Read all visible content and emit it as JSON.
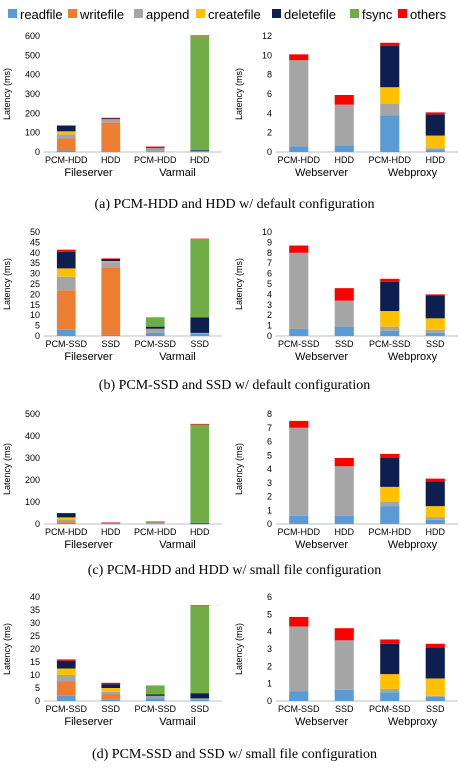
{
  "legend": {
    "items": [
      {
        "label": "readfile",
        "color": "#5b9bd5"
      },
      {
        "label": "writefile",
        "color": "#ed7d31"
      },
      {
        "label": "append",
        "color": "#a5a5a5"
      },
      {
        "label": "createfile",
        "color": "#ffc000"
      },
      {
        "label": "deletefile",
        "color": "#0d1f4f"
      },
      {
        "label": "fsync",
        "color": "#70ad47"
      },
      {
        "label": "others",
        "color": "#ff0000"
      }
    ]
  },
  "captions": {
    "a": "(a) PCM-HDD and HDD w/ default configuration",
    "b": "(b) PCM-SSD and SSD w/ default configuration",
    "c": "(c) PCM-HDD and HDD w/ small file configuration",
    "d": "(d) PCM-SSD and SSD w/ small file configuration"
  },
  "chart_data": [
    {
      "type": "bar",
      "stacked": true,
      "panel": "a-left",
      "ylabel": "Latency (ms)",
      "ylim": [
        0,
        600
      ],
      "yticks": [
        0,
        100,
        200,
        300,
        400,
        500,
        600
      ],
      "categories": [
        "PCM-HDD",
        "HDD",
        "PCM-HDD",
        "HDD"
      ],
      "groups": [
        {
          "label": "Fileserver",
          "categories": [
            0,
            1
          ]
        },
        {
          "label": "Varmail",
          "categories": [
            2,
            3
          ]
        }
      ],
      "series": [
        {
          "name": "readfile",
          "values": [
            8,
            2,
            2,
            2
          ]
        },
        {
          "name": "writefile",
          "values": [
            62,
            150,
            0,
            0
          ]
        },
        {
          "name": "append",
          "values": [
            22,
            18,
            18,
            2
          ]
        },
        {
          "name": "createfile",
          "values": [
            15,
            0,
            0,
            0
          ]
        },
        {
          "name": "deletefile",
          "values": [
            28,
            5,
            5,
            5
          ]
        },
        {
          "name": "fsync",
          "values": [
            0,
            0,
            2,
            590
          ]
        },
        {
          "name": "others",
          "values": [
            3,
            2,
            1,
            4
          ]
        }
      ]
    },
    {
      "type": "bar",
      "stacked": true,
      "panel": "a-right",
      "ylabel": "Latency (ms)",
      "ylim": [
        0,
        12
      ],
      "yticks": [
        0,
        2,
        4,
        6,
        8,
        10,
        12
      ],
      "categories": [
        "PCM-HDD",
        "HDD",
        "PCM-HDD",
        "HDD"
      ],
      "groups": [
        {
          "label": "Webserver",
          "categories": [
            0,
            1
          ]
        },
        {
          "label": "Webproxy",
          "categories": [
            2,
            3
          ]
        }
      ],
      "series": [
        {
          "name": "readfile",
          "values": [
            0.6,
            0.7,
            3.8,
            0.2
          ]
        },
        {
          "name": "writefile",
          "values": [
            0,
            0,
            0,
            0
          ]
        },
        {
          "name": "append",
          "values": [
            8.9,
            4.2,
            1.2,
            0.2
          ]
        },
        {
          "name": "createfile",
          "values": [
            0,
            0,
            1.7,
            1.3
          ]
        },
        {
          "name": "deletefile",
          "values": [
            0,
            0,
            4.3,
            2.2
          ]
        },
        {
          "name": "fsync",
          "values": [
            0,
            0,
            0,
            0
          ]
        },
        {
          "name": "others",
          "values": [
            0.6,
            1.0,
            0.3,
            0.2
          ]
        }
      ]
    },
    {
      "type": "bar",
      "stacked": true,
      "panel": "b-left",
      "ylabel": "Latency (ms)",
      "ylim": [
        0,
        50
      ],
      "yticks": [
        0,
        5,
        10,
        15,
        20,
        25,
        30,
        35,
        40,
        45,
        50
      ],
      "categories": [
        "PCM-SSD",
        "SSD",
        "PCM-SSD",
        "SSD"
      ],
      "groups": [
        {
          "label": "Fileserver",
          "categories": [
            0,
            1
          ]
        },
        {
          "label": "Varmail",
          "categories": [
            2,
            3
          ]
        }
      ],
      "series": [
        {
          "name": "readfile",
          "values": [
            3,
            0.5,
            1.5,
            1
          ]
        },
        {
          "name": "writefile",
          "values": [
            19,
            32.5,
            0,
            0
          ]
        },
        {
          "name": "append",
          "values": [
            6.5,
            2.5,
            2,
            0.5
          ]
        },
        {
          "name": "createfile",
          "values": [
            4,
            0.5,
            0,
            0
          ]
        },
        {
          "name": "deletefile",
          "values": [
            8,
            1,
            1,
            7.5
          ]
        },
        {
          "name": "fsync",
          "values": [
            0,
            0,
            4.5,
            37.5
          ]
        },
        {
          "name": "others",
          "values": [
            1,
            0.3,
            0,
            0.3
          ]
        }
      ]
    },
    {
      "type": "bar",
      "stacked": true,
      "panel": "b-right",
      "ylabel": "Latency (ms)",
      "ylim": [
        0,
        10
      ],
      "yticks": [
        0,
        1,
        2,
        3,
        4,
        5,
        6,
        7,
        8,
        9,
        10
      ],
      "categories": [
        "PCM-SSD",
        "SSD",
        "PCM-SSD",
        "SSD"
      ],
      "groups": [
        {
          "label": "Webserver",
          "categories": [
            0,
            1
          ]
        },
        {
          "label": "Webproxy",
          "categories": [
            2,
            3
          ]
        }
      ],
      "series": [
        {
          "name": "readfile",
          "values": [
            0.7,
            0.9,
            0.5,
            0.3
          ]
        },
        {
          "name": "writefile",
          "values": [
            0,
            0,
            0,
            0
          ]
        },
        {
          "name": "append",
          "values": [
            7.3,
            2.5,
            0.4,
            0.3
          ]
        },
        {
          "name": "createfile",
          "values": [
            0,
            0,
            1.5,
            1.1
          ]
        },
        {
          "name": "deletefile",
          "values": [
            0,
            0,
            2.8,
            2.2
          ]
        },
        {
          "name": "fsync",
          "values": [
            0,
            0,
            0,
            0
          ]
        },
        {
          "name": "others",
          "values": [
            0.7,
            1.2,
            0.3,
            0.1
          ]
        }
      ]
    },
    {
      "type": "bar",
      "stacked": true,
      "panel": "c-left",
      "ylabel": "Latency (ms)",
      "ylim": [
        0,
        500
      ],
      "yticks": [
        0,
        100,
        200,
        300,
        400,
        500
      ],
      "categories": [
        "PCM-HDD",
        "HDD",
        "PCM-HDD",
        "HDD"
      ],
      "groups": [
        {
          "label": "Fileserver",
          "categories": [
            0,
            1
          ]
        },
        {
          "label": "Varmail",
          "categories": [
            2,
            3
          ]
        }
      ],
      "series": [
        {
          "name": "readfile",
          "values": [
            5,
            1,
            1,
            1
          ]
        },
        {
          "name": "writefile",
          "values": [
            8,
            2,
            0,
            0
          ]
        },
        {
          "name": "append",
          "values": [
            7,
            1,
            5,
            1
          ]
        },
        {
          "name": "createfile",
          "values": [
            10,
            1,
            3,
            0
          ]
        },
        {
          "name": "deletefile",
          "values": [
            18,
            1,
            1,
            3
          ]
        },
        {
          "name": "fsync",
          "values": [
            0,
            0,
            0,
            447
          ]
        },
        {
          "name": "others",
          "values": [
            2,
            1,
            1,
            3
          ]
        }
      ]
    },
    {
      "type": "bar",
      "stacked": true,
      "panel": "c-right",
      "ylabel": "Latency (ms)",
      "ylim": [
        0,
        8
      ],
      "yticks": [
        0,
        1,
        2,
        3,
        4,
        5,
        6,
        7,
        8
      ],
      "categories": [
        "PCM-HDD",
        "HDD",
        "PCM-HDD",
        "HDD"
      ],
      "groups": [
        {
          "label": "Webserver",
          "categories": [
            0,
            1
          ]
        },
        {
          "label": "Webproxy",
          "categories": [
            2,
            3
          ]
        }
      ],
      "series": [
        {
          "name": "readfile",
          "values": [
            0.6,
            0.6,
            1.3,
            0.3
          ]
        },
        {
          "name": "writefile",
          "values": [
            0,
            0,
            0,
            0
          ]
        },
        {
          "name": "append",
          "values": [
            6.4,
            3.6,
            0.3,
            0.2
          ]
        },
        {
          "name": "createfile",
          "values": [
            0,
            0,
            1.1,
            0.8
          ]
        },
        {
          "name": "deletefile",
          "values": [
            0,
            0,
            2.1,
            1.8
          ]
        },
        {
          "name": "fsync",
          "values": [
            0,
            0,
            0,
            0
          ]
        },
        {
          "name": "others",
          "values": [
            0.5,
            0.6,
            0.3,
            0.2
          ]
        }
      ]
    },
    {
      "type": "bar",
      "stacked": true,
      "panel": "d-left",
      "ylabel": "Latency (ms)",
      "ylim": [
        0,
        40
      ],
      "yticks": [
        0,
        5,
        10,
        15,
        20,
        25,
        30,
        35,
        40
      ],
      "categories": [
        "PCM-SSD",
        "SSD",
        "PCM-SSD",
        "SSD"
      ],
      "groups": [
        {
          "label": "Fileserver",
          "categories": [
            0,
            1
          ]
        },
        {
          "label": "Varmail",
          "categories": [
            2,
            3
          ]
        }
      ],
      "series": [
        {
          "name": "readfile",
          "values": [
            2,
            0.5,
            1,
            0.5
          ]
        },
        {
          "name": "writefile",
          "values": [
            5.5,
            2,
            0,
            0
          ]
        },
        {
          "name": "append",
          "values": [
            2.5,
            1,
            1,
            0.5
          ]
        },
        {
          "name": "createfile",
          "values": [
            2.5,
            1.5,
            0,
            0
          ]
        },
        {
          "name": "deletefile",
          "values": [
            3,
            1.5,
            0.5,
            2
          ]
        },
        {
          "name": "fsync",
          "values": [
            0,
            0,
            3.5,
            33.5
          ]
        },
        {
          "name": "others",
          "values": [
            0.5,
            0.5,
            0,
            0.3
          ]
        }
      ]
    },
    {
      "type": "bar",
      "stacked": true,
      "panel": "d-right",
      "ylabel": "Latency (ms)",
      "ylim": [
        0,
        6
      ],
      "yticks": [
        0,
        1,
        2,
        3,
        4,
        5,
        6
      ],
      "categories": [
        "PCM-SSD",
        "SSD",
        "PCM-SSD",
        "SSD"
      ],
      "groups": [
        {
          "label": "Webserver",
          "categories": [
            0,
            1
          ]
        },
        {
          "label": "Webproxy",
          "categories": [
            2,
            3
          ]
        }
      ],
      "series": [
        {
          "name": "readfile",
          "values": [
            0.55,
            0.65,
            0.5,
            0.25
          ]
        },
        {
          "name": "writefile",
          "values": [
            0,
            0,
            0,
            0
          ]
        },
        {
          "name": "append",
          "values": [
            3.75,
            2.85,
            0.2,
            0.05
          ]
        },
        {
          "name": "createfile",
          "values": [
            0,
            0,
            0.85,
            1.0
          ]
        },
        {
          "name": "deletefile",
          "values": [
            0,
            0,
            1.75,
            1.8
          ]
        },
        {
          "name": "fsync",
          "values": [
            0,
            0,
            0,
            0
          ]
        },
        {
          "name": "others",
          "values": [
            0.55,
            0.7,
            0.25,
            0.2
          ]
        }
      ]
    }
  ]
}
